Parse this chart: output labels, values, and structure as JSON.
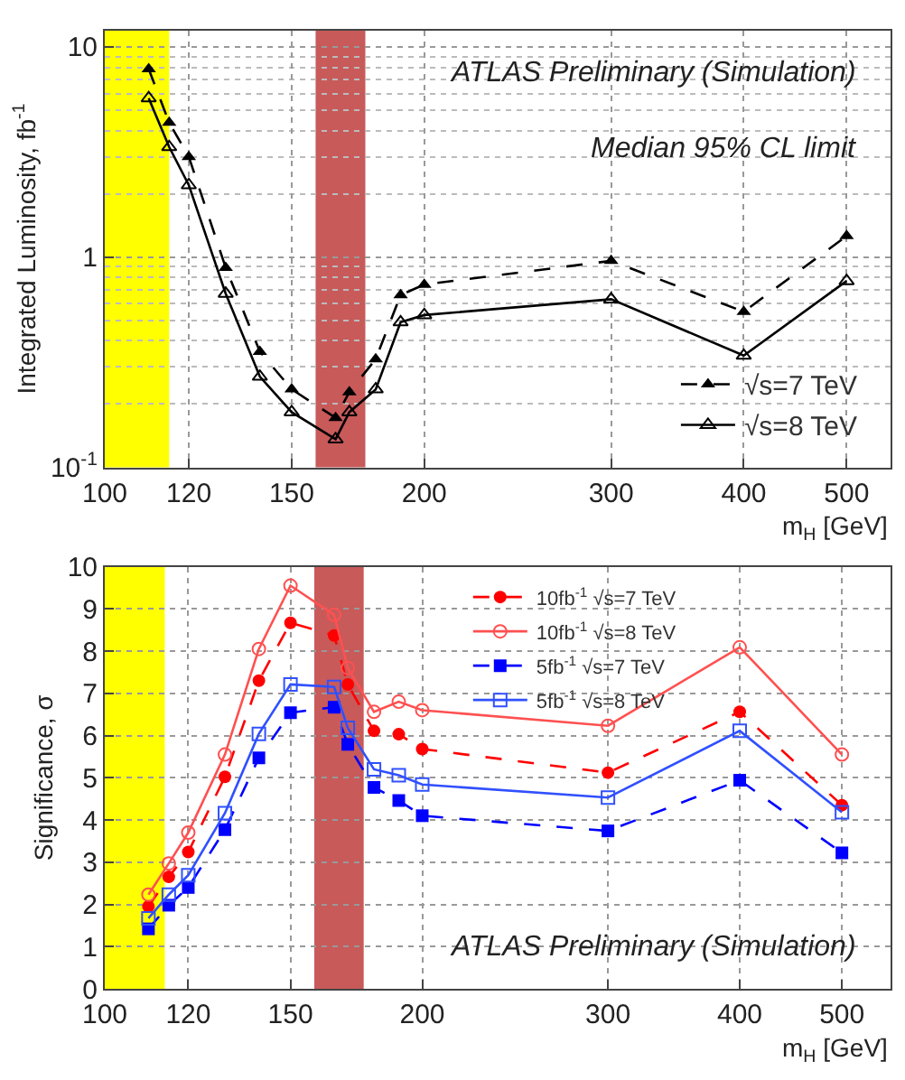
{
  "chart_data": [
    {
      "type": "line",
      "ylabel": "Integrated Luminosity, fb$^{-1}$",
      "xlabel": "m$_{H}$ [GeV]",
      "log": "xy",
      "x": [
        110,
        115,
        120,
        130,
        140,
        150,
        165,
        170,
        180,
        190,
        200,
        300,
        400,
        500
      ],
      "xlim": [
        100,
        550
      ],
      "xticks": [
        100,
        120,
        150,
        200,
        300,
        400,
        500
      ],
      "ylim": [
        0.1,
        12
      ],
      "yticks": [
        {
          "value": 0.1,
          "label": "10$^{-1}$"
        },
        1,
        10
      ],
      "grid": true,
      "legend": "bottom right",
      "annotations": [
        "ATLAS Preliminary (Simulation)",
        "Median 95% CL limit"
      ],
      "bands": [
        {
          "axis": "x",
          "from": 100,
          "to": 115,
          "color": "#ffff00"
        },
        {
          "axis": "x",
          "from": 158,
          "to": 176,
          "color": "#c85a5a"
        }
      ],
      "series": [
        {
          "name": "√s=7 TeV",
          "color": "#000000",
          "marker": "triangle",
          "line_style": "dashed",
          "values": [
            7.85,
            4.36,
            3.0,
            0.89,
            0.355,
            0.235,
            0.172,
            0.228,
            0.327,
            0.66,
            0.74,
            0.96,
            0.55,
            1.26
          ]
        },
        {
          "name": "√s=8 TeV",
          "color": "#000000",
          "marker": "triangle",
          "line_style": "solid",
          "values": [
            5.7,
            3.34,
            2.2,
            0.67,
            0.27,
            0.183,
            0.136,
            0.183,
            0.235,
            0.49,
            0.53,
            0.63,
            0.34,
            0.77
          ]
        }
      ]
    },
    {
      "type": "line",
      "ylabel": "Significance, σ",
      "xlabel": "m$_{H}$ [GeV]",
      "log": "x",
      "x": [
        110,
        115,
        120,
        130,
        140,
        150,
        165,
        170,
        180,
        190,
        200,
        300,
        400,
        500
      ],
      "xlim": [
        100,
        556
      ],
      "xticks": [
        100,
        120,
        150,
        200,
        300,
        400,
        500
      ],
      "ylim": [
        0,
        10
      ],
      "yticks": [
        0,
        1,
        2,
        3,
        4,
        5,
        6,
        7,
        8,
        9,
        10
      ],
      "grid": true,
      "legend": "top right",
      "annotations": [
        "ATLAS Preliminary (Simulation)"
      ],
      "bands": [
        {
          "axis": "x",
          "from": 100,
          "to": 114,
          "color": "#ffff00"
        },
        {
          "axis": "x",
          "from": 158,
          "to": 176,
          "color": "#c85a5a"
        }
      ],
      "series": [
        {
          "name": "10fb$^{-1}$ √s=7 TeV",
          "color": "#ff0000",
          "marker": "circle",
          "line_style": "dashed",
          "values": [
            1.95,
            2.65,
            3.24,
            5.02,
            7.3,
            8.67,
            8.37,
            7.21,
            6.11,
            6.03,
            5.68,
            5.12,
            6.56,
            4.35
          ]
        },
        {
          "name": "10fb$^{-1}$ √s=8 TeV",
          "color": "#ff5050",
          "marker": "circle",
          "line_style": "solid",
          "values": [
            2.23,
            2.97,
            3.7,
            5.55,
            8.05,
            9.55,
            8.86,
            7.6,
            6.56,
            6.8,
            6.6,
            6.23,
            8.09,
            5.55
          ]
        },
        {
          "name": "5fb$^{-1}$ √s=7 TeV",
          "color": "#0000ff",
          "marker": "square",
          "line_style": "dashed",
          "values": [
            1.42,
            1.98,
            2.4,
            3.77,
            5.47,
            6.54,
            6.67,
            5.79,
            4.77,
            4.46,
            4.1,
            3.74,
            4.94,
            3.22
          ]
        },
        {
          "name": "5fb$^{-1}$ √s=8 TeV",
          "color": "#3050ff",
          "marker": "square",
          "line_style": "solid",
          "values": [
            1.67,
            2.23,
            2.69,
            4.16,
            6.04,
            7.21,
            7.15,
            6.18,
            5.2,
            5.06,
            4.84,
            4.53,
            6.11,
            4.18
          ]
        }
      ]
    }
  ]
}
